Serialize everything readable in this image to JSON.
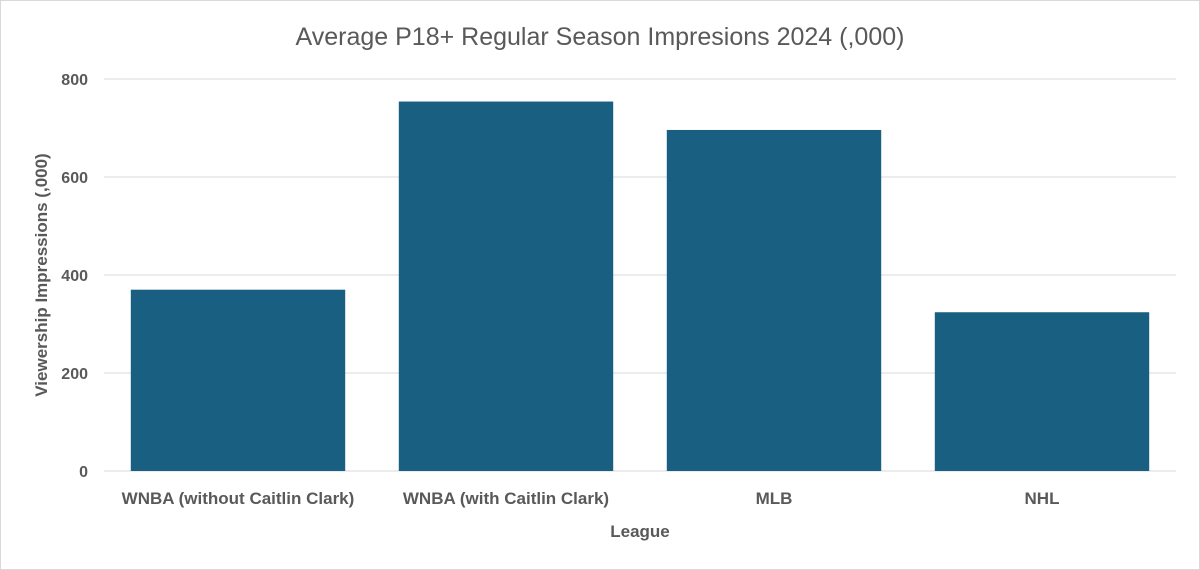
{
  "chart_data": {
    "type": "bar",
    "title": "Average P18+ Regular Season Impresions 2024  (,000)",
    "xlabel": "League",
    "ylabel": "Viewership Impressions (,000)",
    "categories": [
      "WNBA (without Caitlin Clark)",
      "WNBA (with Caitlin Clark)",
      "MLB",
      "NHL"
    ],
    "values": [
      370,
      754,
      696,
      324
    ],
    "ylim": [
      0,
      800
    ],
    "yticks": [
      "0",
      "200",
      "400",
      "600",
      "800"
    ],
    "grid": true,
    "legend": "none",
    "bar_color": "#185F81"
  }
}
